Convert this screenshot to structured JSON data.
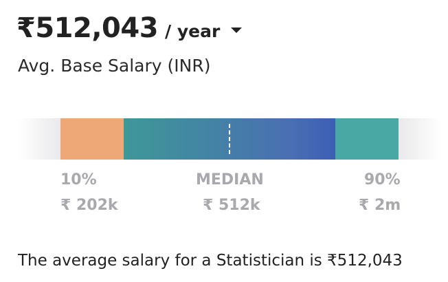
{
  "header": {
    "amount": "₹512,043",
    "period": "/ year",
    "dropdown_icon": "chevron-down-icon",
    "subtitle": "Avg. Base Salary (INR)"
  },
  "range": {
    "low": {
      "label": "10%",
      "value": "₹ 202k",
      "color": "#eea878"
    },
    "median": {
      "label": "MEDIAN",
      "value": "₹ 512k",
      "color_start": "#3e9898",
      "color_end": "#3b5fb4"
    },
    "high": {
      "label": "90%",
      "value": "₹ 2m",
      "color": "#49a8a4"
    }
  },
  "footer": {
    "text": "The average salary for a Statistician is ₹512,043"
  }
}
